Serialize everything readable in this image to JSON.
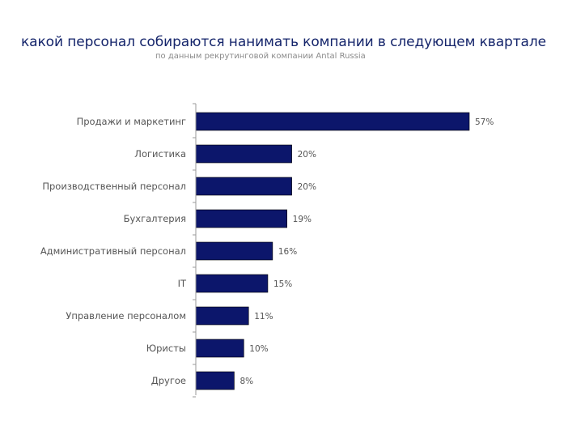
{
  "colors": {
    "bar_fill": "#0c166b",
    "title": "#15256b",
    "subtitle": "#8a8a8a",
    "axis": "#9a9a9a",
    "label_text": "#555555"
  },
  "chart_data": {
    "type": "bar",
    "orientation": "horizontal",
    "title": "какой персонал собираются нанимать компании в следующем квартале",
    "subtitle": "по данным рекрутинговой компании Antal Russia",
    "xlabel": "",
    "ylabel": "",
    "xlim": [
      0,
      57
    ],
    "grid": false,
    "legend": "none",
    "categories": [
      "Продажи и маркетинг",
      "Логистика",
      "Производственный персонал",
      "Бухгалтерия",
      "Административный персонал",
      "IT",
      "Управление персоналом",
      "Юристы",
      "Другое"
    ],
    "values": [
      57,
      20,
      20,
      19,
      16,
      15,
      11,
      10,
      8
    ],
    "data_labels": [
      "57%",
      "20%",
      "20%",
      "19%",
      "16%",
      "15%",
      "11%",
      "10%",
      "8%"
    ]
  }
}
